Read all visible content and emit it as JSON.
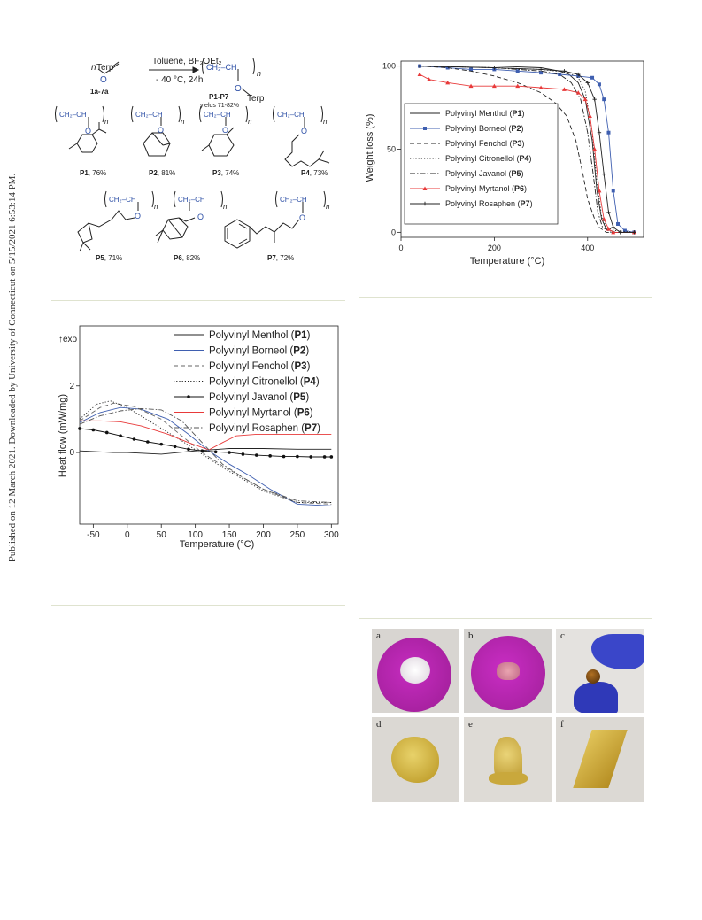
{
  "sidebar": {
    "text": "Published on 12 March 2021. Downloaded by University of Connecticut on 5/15/2021 6:53:14 PM."
  },
  "scheme": {
    "monomer": "Terp",
    "monomer_prefix": "n",
    "monomer_label": "1a-7a",
    "reagent": "Toluene, BF₃OEt₂",
    "conditions": "- 40 °C, 24h",
    "product_label": "P1-P7",
    "yields": "yields 71-82%",
    "product_sub": "Terp",
    "repeat_unit": "CH₂–CH",
    "n": "n",
    "O": "O",
    "structures": [
      {
        "label": "P1",
        "yield": ", 76%"
      },
      {
        "label": "P2",
        "yield": ", 81%"
      },
      {
        "label": "P3",
        "yield": ", 74%"
      },
      {
        "label": "P4",
        "yield": ", 73%"
      },
      {
        "label": "P5",
        "yield": ", 71%"
      },
      {
        "label": "P6",
        "yield": ", 82%"
      },
      {
        "label": "P7",
        "yield": ", 72%"
      }
    ]
  },
  "chart_data": [
    {
      "type": "line",
      "xlabel": "Temperature (°C)",
      "ylabel": "Weight loss (%)",
      "xlim": [
        0,
        520
      ],
      "ylim": [
        -3,
        103
      ],
      "xticks": [
        0,
        200,
        400
      ],
      "yticks": [
        0,
        50,
        100
      ],
      "legend_position": "bottom-left",
      "series": [
        {
          "name": "Polyvinyl Menthol",
          "id": "P1",
          "color": "#222222",
          "style": "solid",
          "x": [
            40,
            200,
            300,
            340,
            360,
            380,
            395,
            410,
            420,
            430,
            440,
            460,
            500
          ],
          "y": [
            100,
            100,
            99,
            97,
            95,
            90,
            80,
            55,
            25,
            8,
            2,
            0,
            0
          ]
        },
        {
          "name": "Polyvinyl Borneol",
          "id": "P2",
          "color": "#3f5fb0",
          "style": "marker-square",
          "x": [
            40,
            100,
            150,
            200,
            250,
            300,
            340,
            380,
            410,
            425,
            435,
            445,
            455,
            465,
            480,
            500
          ],
          "y": [
            100,
            99,
            98,
            98,
            97,
            96,
            95,
            94,
            93,
            89,
            80,
            60,
            25,
            5,
            1,
            0
          ]
        },
        {
          "name": "Polyvinyl Fenchol",
          "id": "P3",
          "color": "#222222",
          "style": "dash",
          "x": [
            40,
            100,
            150,
            200,
            250,
            300,
            330,
            355,
            375,
            390,
            400,
            415,
            425,
            440,
            500
          ],
          "y": [
            100,
            99,
            97,
            94,
            90,
            84,
            78,
            70,
            55,
            35,
            20,
            8,
            3,
            0,
            0
          ]
        },
        {
          "name": "Polyvinyl Citronellol",
          "id": "P4",
          "color": "#222222",
          "style": "dot",
          "x": [
            40,
            200,
            300,
            360,
            380,
            395,
            410,
            420,
            430,
            440,
            460,
            500
          ],
          "y": [
            100,
            99,
            98,
            96,
            93,
            85,
            60,
            30,
            10,
            3,
            1,
            0
          ]
        },
        {
          "name": "Polyvinyl Javanol",
          "id": "P5",
          "color": "#222222",
          "style": "dashdot",
          "x": [
            40,
            200,
            300,
            340,
            365,
            385,
            400,
            412,
            422,
            432,
            450,
            500
          ],
          "y": [
            100,
            99,
            97,
            95,
            90,
            80,
            60,
            35,
            12,
            3,
            0,
            0
          ]
        },
        {
          "name": "Polyvinyl Myrtanol",
          "id": "P6",
          "color": "#e83a3a",
          "style": "marker-triangle",
          "x": [
            40,
            60,
            100,
            150,
            200,
            250,
            300,
            350,
            380,
            395,
            405,
            415,
            425,
            435,
            445,
            455,
            500
          ],
          "y": [
            95,
            92,
            90,
            88,
            88,
            88,
            87,
            86,
            84,
            80,
            70,
            50,
            25,
            8,
            2,
            0,
            0
          ]
        },
        {
          "name": "Polyvinyl Rosaphen",
          "id": "P7",
          "color": "#222222",
          "style": "marker-plus",
          "x": [
            40,
            200,
            300,
            350,
            380,
            400,
            415,
            425,
            435,
            445,
            455,
            470,
            500
          ],
          "y": [
            100,
            99,
            98,
            97,
            95,
            90,
            80,
            60,
            35,
            12,
            3,
            0,
            0
          ]
        }
      ]
    },
    {
      "type": "line",
      "xlabel": "Temperature (°C)",
      "ylabel": "Heat flow (mW/mg)",
      "annotation": "exo",
      "xlim": [
        -70,
        310
      ],
      "ylim": [
        -2.15,
        3.8
      ],
      "xticks": [
        -50,
        0,
        50,
        100,
        150,
        200,
        250,
        300
      ],
      "yticks": [
        0,
        2
      ],
      "legend_position": "top-right",
      "series": [
        {
          "name": "Polyvinyl Menthol",
          "id": "P1",
          "color": "#222222",
          "style": "solid",
          "x": [
            -70,
            -20,
            0,
            50,
            100,
            150,
            200,
            250,
            300
          ],
          "y": [
            0.05,
            0.0,
            0.0,
            -0.05,
            0.05,
            0.12,
            0.12,
            0.1,
            0.1
          ]
        },
        {
          "name": "Polyvinyl Borneol",
          "id": "P2",
          "color": "#3f5fb0",
          "style": "solid",
          "x": [
            -70,
            -40,
            -10,
            20,
            60,
            90,
            120,
            150,
            180,
            210,
            250,
            300
          ],
          "y": [
            0.9,
            1.2,
            1.35,
            1.3,
            1.0,
            0.55,
            0.05,
            -0.35,
            -0.7,
            -1.1,
            -1.55,
            -1.6
          ]
        },
        {
          "name": "Polyvinyl Fenchol",
          "id": "P3",
          "color": "#666666",
          "style": "dash",
          "x": [
            -70,
            -40,
            -20,
            10,
            50,
            80,
            110,
            140,
            170,
            200,
            250,
            300
          ],
          "y": [
            0.95,
            1.35,
            1.48,
            1.38,
            1.0,
            0.5,
            0.0,
            -0.4,
            -0.75,
            -1.1,
            -1.5,
            -1.55
          ]
        },
        {
          "name": "Polyvinyl Citronellol",
          "id": "P4",
          "color": "#222222",
          "style": "dot",
          "x": [
            -70,
            -45,
            -25,
            0,
            40,
            80,
            110,
            140,
            170,
            200,
            250,
            300
          ],
          "y": [
            1.0,
            1.45,
            1.55,
            1.35,
            0.85,
            0.35,
            -0.05,
            -0.45,
            -0.8,
            -1.15,
            -1.5,
            -1.5
          ]
        },
        {
          "name": "Polyvinyl Javanol",
          "id": "P5",
          "color": "#111111",
          "style": "marker-circle",
          "x": [
            -70,
            -50,
            -30,
            -10,
            10,
            30,
            50,
            70,
            90,
            110,
            130,
            150,
            170,
            190,
            210,
            230,
            250,
            270,
            290,
            300
          ],
          "y": [
            0.72,
            0.68,
            0.6,
            0.5,
            0.4,
            0.32,
            0.25,
            0.18,
            0.1,
            0.05,
            0.02,
            0.0,
            -0.05,
            -0.08,
            -0.1,
            -0.12,
            -0.12,
            -0.13,
            -0.13,
            -0.13
          ]
        },
        {
          "name": "Polyvinyl Myrtanol",
          "id": "P6",
          "color": "#e83a3a",
          "style": "solid",
          "x": [
            -70,
            -40,
            -10,
            20,
            60,
            90,
            120,
            140,
            160,
            190,
            250,
            300
          ],
          "y": [
            0.95,
            0.95,
            0.92,
            0.8,
            0.55,
            0.3,
            0.08,
            0.3,
            0.5,
            0.55,
            0.55,
            0.55
          ]
        },
        {
          "name": "Polyvinyl Rosaphen",
          "id": "P7",
          "color": "#555555",
          "style": "dashdot",
          "x": [
            -70,
            -40,
            -10,
            20,
            50,
            80,
            110,
            140,
            170,
            200,
            250,
            300
          ],
          "y": [
            0.85,
            1.1,
            1.25,
            1.32,
            1.28,
            0.95,
            0.3,
            -0.35,
            -0.75,
            -1.1,
            -1.45,
            -1.5
          ]
        }
      ]
    }
  ],
  "photos": {
    "a": "a",
    "b": "b",
    "c": "c",
    "d": "d",
    "e": "e",
    "f": "f"
  }
}
